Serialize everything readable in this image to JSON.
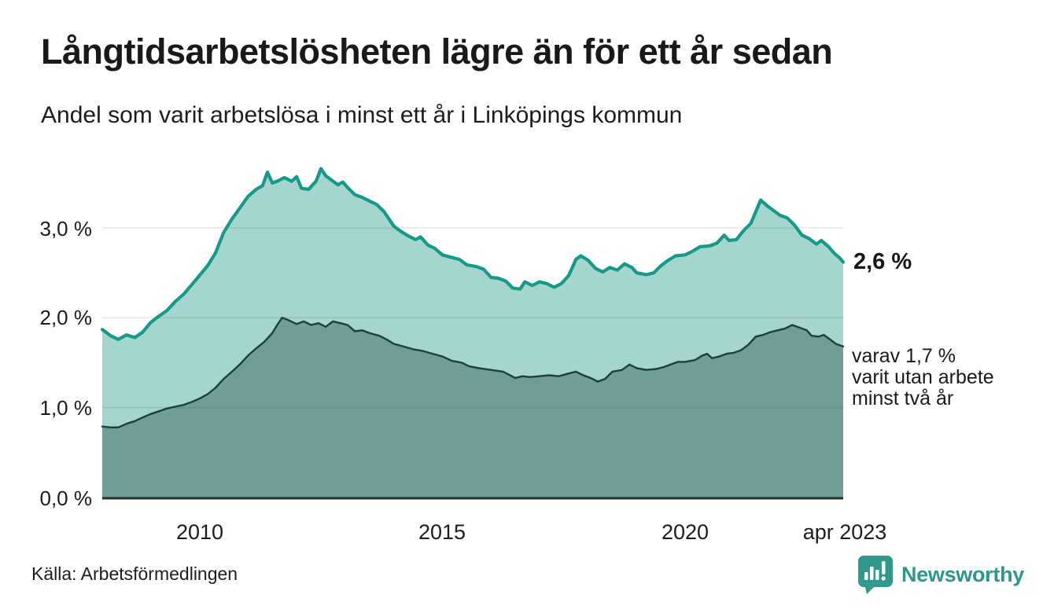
{
  "header": {
    "title": "Långtidsarbetslösheten lägre än för ett år sedan",
    "subtitle": "Andel som varit arbetslösa i minst ett år i Linköpings kommun"
  },
  "annotations": {
    "total_value_label": "2,6 %",
    "subset_line1": "varav 1,7 %",
    "subset_line2": "varit utan arbete",
    "subset_line3": "minst två år"
  },
  "footer": {
    "source": "Källa: Arbetsförmedlingen",
    "brand": "Newsworthy"
  },
  "colors": {
    "total_line": "#17998a",
    "total_fill": "#a4d5cf",
    "subset_line": "#1f3d39",
    "subset_fill": "#6f9e99",
    "gridline": "rgba(0,0,0,0.09)",
    "axis_line": "#2c2c2c",
    "brand_teal": "#2f968b"
  },
  "chart_data": {
    "type": "area",
    "title": "Långtidsarbetslösheten lägre än för ett år sedan",
    "subtitle": "Andel som varit arbetslösa i minst ett år i Linköpings kommun",
    "x_domain": [
      2008.0,
      2023.25
    ],
    "y_axis": {
      "unit": "%",
      "min": 0,
      "max": 3.9,
      "gridline_values": [
        1.0,
        2.0,
        3.0
      ]
    },
    "x_ticks": [
      {
        "value": 2010,
        "label": "2010"
      },
      {
        "value": 2015,
        "label": "2015"
      },
      {
        "value": 2020,
        "label": "2020"
      },
      {
        "value": 2023.25,
        "label": "apr 2023"
      }
    ],
    "y_ticks": [
      {
        "value": 3.0,
        "label": "3,0 %"
      },
      {
        "value": 2.0,
        "label": "2,0 %"
      },
      {
        "value": 1.0,
        "label": "1,0 %"
      },
      {
        "value": 0.0,
        "label": "0,0 %"
      }
    ],
    "legend_position": "right-annotations",
    "grid": true,
    "series": [
      {
        "name": "Andel arbetslösa minst ett år (totalt)",
        "end_value": 2.6,
        "end_label": "2,6 %",
        "points": [
          [
            2008.0,
            1.87
          ],
          [
            2008.17,
            1.8
          ],
          [
            2008.33,
            1.76
          ],
          [
            2008.5,
            1.81
          ],
          [
            2008.67,
            1.78
          ],
          [
            2008.83,
            1.84
          ],
          [
            2009.0,
            1.95
          ],
          [
            2009.17,
            2.02
          ],
          [
            2009.33,
            2.08
          ],
          [
            2009.5,
            2.18
          ],
          [
            2009.67,
            2.26
          ],
          [
            2009.83,
            2.36
          ],
          [
            2010.0,
            2.47
          ],
          [
            2010.17,
            2.58
          ],
          [
            2010.33,
            2.72
          ],
          [
            2010.5,
            2.95
          ],
          [
            2010.67,
            3.1
          ],
          [
            2010.83,
            3.22
          ],
          [
            2011.0,
            3.35
          ],
          [
            2011.17,
            3.43
          ],
          [
            2011.3,
            3.47
          ],
          [
            2011.4,
            3.62
          ],
          [
            2011.5,
            3.5
          ],
          [
            2011.6,
            3.52
          ],
          [
            2011.75,
            3.56
          ],
          [
            2011.9,
            3.52
          ],
          [
            2012.0,
            3.57
          ],
          [
            2012.1,
            3.44
          ],
          [
            2012.25,
            3.43
          ],
          [
            2012.4,
            3.52
          ],
          [
            2012.5,
            3.66
          ],
          [
            2012.6,
            3.58
          ],
          [
            2012.75,
            3.52
          ],
          [
            2012.85,
            3.48
          ],
          [
            2012.95,
            3.51
          ],
          [
            2013.05,
            3.45
          ],
          [
            2013.2,
            3.37
          ],
          [
            2013.35,
            3.34
          ],
          [
            2013.5,
            3.3
          ],
          [
            2013.65,
            3.26
          ],
          [
            2013.8,
            3.18
          ],
          [
            2014.0,
            3.02
          ],
          [
            2014.15,
            2.96
          ],
          [
            2014.3,
            2.91
          ],
          [
            2014.45,
            2.87
          ],
          [
            2014.55,
            2.9
          ],
          [
            2014.7,
            2.81
          ],
          [
            2014.85,
            2.77
          ],
          [
            2015.0,
            2.7
          ],
          [
            2015.2,
            2.67
          ],
          [
            2015.35,
            2.65
          ],
          [
            2015.5,
            2.59
          ],
          [
            2015.7,
            2.57
          ],
          [
            2015.85,
            2.54
          ],
          [
            2016.0,
            2.45
          ],
          [
            2016.15,
            2.44
          ],
          [
            2016.3,
            2.41
          ],
          [
            2016.45,
            2.33
          ],
          [
            2016.6,
            2.32
          ],
          [
            2016.7,
            2.4
          ],
          [
            2016.85,
            2.36
          ],
          [
            2017.0,
            2.4
          ],
          [
            2017.15,
            2.38
          ],
          [
            2017.3,
            2.34
          ],
          [
            2017.45,
            2.38
          ],
          [
            2017.6,
            2.47
          ],
          [
            2017.75,
            2.65
          ],
          [
            2017.85,
            2.69
          ],
          [
            2018.0,
            2.64
          ],
          [
            2018.15,
            2.55
          ],
          [
            2018.3,
            2.51
          ],
          [
            2018.45,
            2.56
          ],
          [
            2018.6,
            2.53
          ],
          [
            2018.75,
            2.6
          ],
          [
            2018.9,
            2.56
          ],
          [
            2019.0,
            2.5
          ],
          [
            2019.2,
            2.48
          ],
          [
            2019.35,
            2.5
          ],
          [
            2019.5,
            2.58
          ],
          [
            2019.65,
            2.64
          ],
          [
            2019.8,
            2.69
          ],
          [
            2020.0,
            2.7
          ],
          [
            2020.15,
            2.74
          ],
          [
            2020.3,
            2.79
          ],
          [
            2020.5,
            2.8
          ],
          [
            2020.65,
            2.83
          ],
          [
            2020.8,
            2.92
          ],
          [
            2020.9,
            2.86
          ],
          [
            2021.05,
            2.87
          ],
          [
            2021.2,
            2.97
          ],
          [
            2021.35,
            3.05
          ],
          [
            2021.45,
            3.18
          ],
          [
            2021.55,
            3.31
          ],
          [
            2021.7,
            3.24
          ],
          [
            2021.85,
            3.18
          ],
          [
            2021.95,
            3.14
          ],
          [
            2022.1,
            3.11
          ],
          [
            2022.25,
            3.03
          ],
          [
            2022.4,
            2.92
          ],
          [
            2022.55,
            2.88
          ],
          [
            2022.7,
            2.82
          ],
          [
            2022.8,
            2.86
          ],
          [
            2022.95,
            2.79
          ],
          [
            2023.08,
            2.71
          ],
          [
            2023.17,
            2.67
          ],
          [
            2023.25,
            2.62
          ]
        ]
      },
      {
        "name": "varav utan arbete minst två år",
        "end_value": 1.7,
        "end_label": "varav 1,7 % varit utan arbete minst två år",
        "points": [
          [
            2008.0,
            0.79
          ],
          [
            2008.17,
            0.78
          ],
          [
            2008.33,
            0.78
          ],
          [
            2008.5,
            0.82
          ],
          [
            2008.67,
            0.85
          ],
          [
            2008.83,
            0.89
          ],
          [
            2009.0,
            0.93
          ],
          [
            2009.17,
            0.96
          ],
          [
            2009.33,
            0.99
          ],
          [
            2009.5,
            1.01
          ],
          [
            2009.67,
            1.03
          ],
          [
            2009.83,
            1.06
          ],
          [
            2010.0,
            1.1
          ],
          [
            2010.17,
            1.15
          ],
          [
            2010.33,
            1.22
          ],
          [
            2010.5,
            1.32
          ],
          [
            2010.67,
            1.4
          ],
          [
            2010.83,
            1.48
          ],
          [
            2011.0,
            1.58
          ],
          [
            2011.17,
            1.66
          ],
          [
            2011.33,
            1.73
          ],
          [
            2011.5,
            1.83
          ],
          [
            2011.6,
            1.92
          ],
          [
            2011.7,
            2.0
          ],
          [
            2011.85,
            1.97
          ],
          [
            2012.0,
            1.93
          ],
          [
            2012.15,
            1.96
          ],
          [
            2012.3,
            1.92
          ],
          [
            2012.45,
            1.94
          ],
          [
            2012.6,
            1.9
          ],
          [
            2012.75,
            1.96
          ],
          [
            2012.9,
            1.94
          ],
          [
            2013.05,
            1.92
          ],
          [
            2013.2,
            1.85
          ],
          [
            2013.35,
            1.86
          ],
          [
            2013.5,
            1.83
          ],
          [
            2013.7,
            1.8
          ],
          [
            2013.85,
            1.76
          ],
          [
            2014.0,
            1.71
          ],
          [
            2014.2,
            1.68
          ],
          [
            2014.4,
            1.65
          ],
          [
            2014.6,
            1.63
          ],
          [
            2014.8,
            1.6
          ],
          [
            2015.0,
            1.57
          ],
          [
            2015.2,
            1.52
          ],
          [
            2015.4,
            1.5
          ],
          [
            2015.55,
            1.46
          ],
          [
            2015.75,
            1.44
          ],
          [
            2016.0,
            1.42
          ],
          [
            2016.25,
            1.4
          ],
          [
            2016.5,
            1.33
          ],
          [
            2016.65,
            1.35
          ],
          [
            2016.8,
            1.34
          ],
          [
            2017.0,
            1.35
          ],
          [
            2017.2,
            1.36
          ],
          [
            2017.4,
            1.35
          ],
          [
            2017.6,
            1.38
          ],
          [
            2017.75,
            1.4
          ],
          [
            2017.9,
            1.36
          ],
          [
            2018.05,
            1.33
          ],
          [
            2018.2,
            1.29
          ],
          [
            2018.35,
            1.32
          ],
          [
            2018.5,
            1.4
          ],
          [
            2018.7,
            1.42
          ],
          [
            2018.85,
            1.48
          ],
          [
            2019.0,
            1.44
          ],
          [
            2019.2,
            1.42
          ],
          [
            2019.4,
            1.43
          ],
          [
            2019.55,
            1.45
          ],
          [
            2019.7,
            1.48
          ],
          [
            2019.85,
            1.51
          ],
          [
            2020.0,
            1.51
          ],
          [
            2020.2,
            1.53
          ],
          [
            2020.35,
            1.58
          ],
          [
            2020.45,
            1.6
          ],
          [
            2020.55,
            1.55
          ],
          [
            2020.7,
            1.57
          ],
          [
            2020.85,
            1.6
          ],
          [
            2021.0,
            1.61
          ],
          [
            2021.15,
            1.64
          ],
          [
            2021.3,
            1.7
          ],
          [
            2021.45,
            1.79
          ],
          [
            2021.6,
            1.81
          ],
          [
            2021.75,
            1.84
          ],
          [
            2021.9,
            1.86
          ],
          [
            2022.05,
            1.88
          ],
          [
            2022.2,
            1.92
          ],
          [
            2022.35,
            1.89
          ],
          [
            2022.5,
            1.86
          ],
          [
            2022.6,
            1.8
          ],
          [
            2022.75,
            1.79
          ],
          [
            2022.85,
            1.81
          ],
          [
            2023.0,
            1.75
          ],
          [
            2023.1,
            1.71
          ],
          [
            2023.25,
            1.68
          ]
        ]
      }
    ]
  }
}
